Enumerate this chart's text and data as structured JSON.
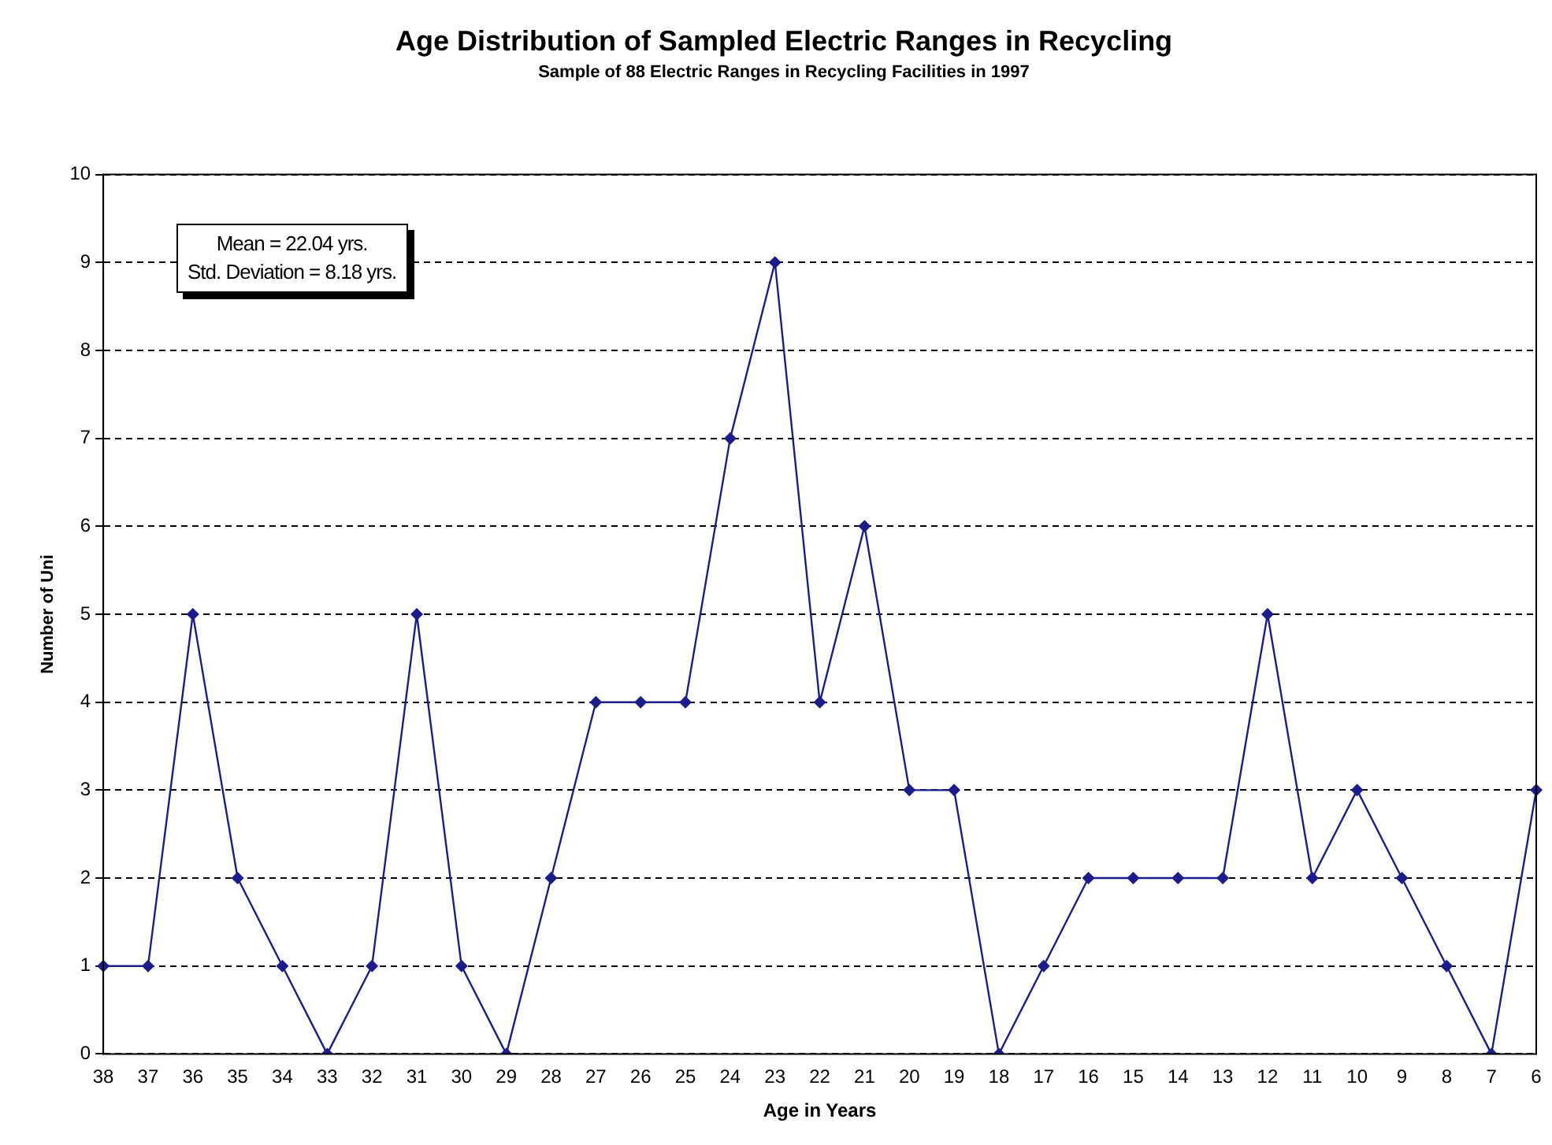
{
  "chart_data": {
    "type": "line",
    "title": "Age Distribution of Sampled Electric Ranges in Recycling",
    "subtitle": "Sample of 88 Electric Ranges in Recycling Facilities in 1997",
    "xlabel": "Age in Years",
    "ylabel": "Number of Uni",
    "categories": [
      "38",
      "37",
      "36",
      "35",
      "34",
      "33",
      "32",
      "31",
      "30",
      "29",
      "28",
      "27",
      "26",
      "25",
      "24",
      "23",
      "22",
      "21",
      "20",
      "19",
      "18",
      "17",
      "16",
      "15",
      "14",
      "13",
      "12",
      "11",
      "10",
      "9",
      "8",
      "7",
      "6"
    ],
    "series": [
      {
        "color": "#1c1c8c",
        "values": [
          1,
          1,
          5,
          2,
          1,
          0,
          1,
          5,
          1,
          0,
          2,
          4,
          4,
          4,
          7,
          9,
          4,
          6,
          3,
          3,
          0,
          1,
          2,
          2,
          2,
          2,
          5,
          2,
          3,
          2,
          1,
          0,
          3
        ]
      }
    ],
    "ylim": [
      0,
      10
    ],
    "yticks": [
      0,
      1,
      2,
      3,
      4,
      5,
      6,
      7,
      8,
      9,
      10
    ],
    "grid": "y",
    "marker": "diamond",
    "line_style": "solid",
    "legend": false,
    "annotations": [
      "Mean = 22.04 yrs.",
      "Std. Deviation = 8.18 yrs."
    ]
  }
}
